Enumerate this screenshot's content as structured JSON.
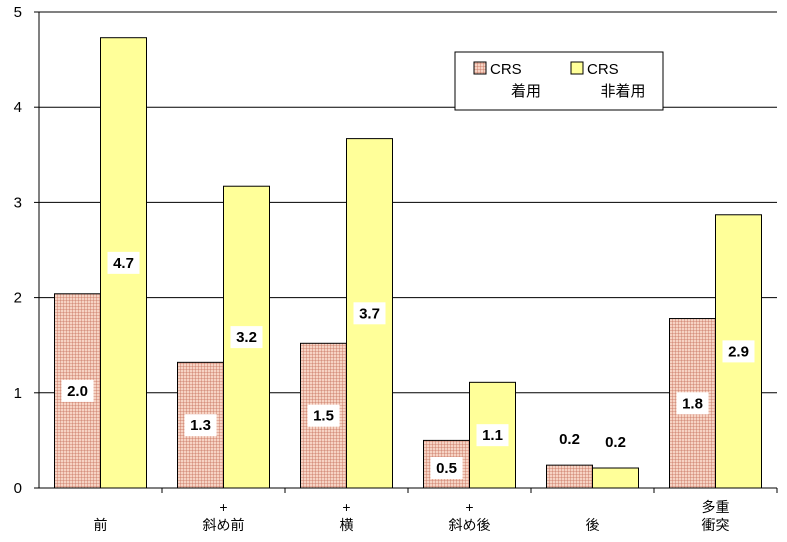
{
  "chart_data": {
    "type": "bar",
    "categories": [
      [
        "前"
      ],
      [
        "+",
        "斜め前"
      ],
      [
        "+",
        "横"
      ],
      [
        "+",
        "斜め後"
      ],
      [
        "後"
      ],
      [
        "多重",
        "衝突"
      ]
    ],
    "series": [
      {
        "name": "CRS 着用",
        "legend_lines": [
          "CRS",
          "着用"
        ],
        "values": [
          2.04,
          1.32,
          1.52,
          0.5,
          0.24,
          1.78
        ],
        "labels": [
          "2.0",
          "1.3",
          "1.5",
          "0.5",
          "0.2",
          "1.8"
        ],
        "color": "#e8a892",
        "pattern": "grid"
      },
      {
        "name": "CRS 非着用",
        "legend_lines": [
          "CRS",
          "非着用"
        ],
        "values": [
          4.73,
          3.17,
          3.67,
          1.11,
          0.21,
          2.87
        ],
        "labels": [
          "4.7",
          "3.2",
          "3.7",
          "1.1",
          "0.2",
          "2.9"
        ],
        "color": "#ffff99"
      }
    ],
    "ylim": [
      0,
      5
    ],
    "yticks": [
      0,
      1,
      2,
      3,
      4,
      5
    ],
    "grid": true,
    "legend_position": "top-right",
    "title": "",
    "xlabel": "",
    "ylabel": ""
  }
}
